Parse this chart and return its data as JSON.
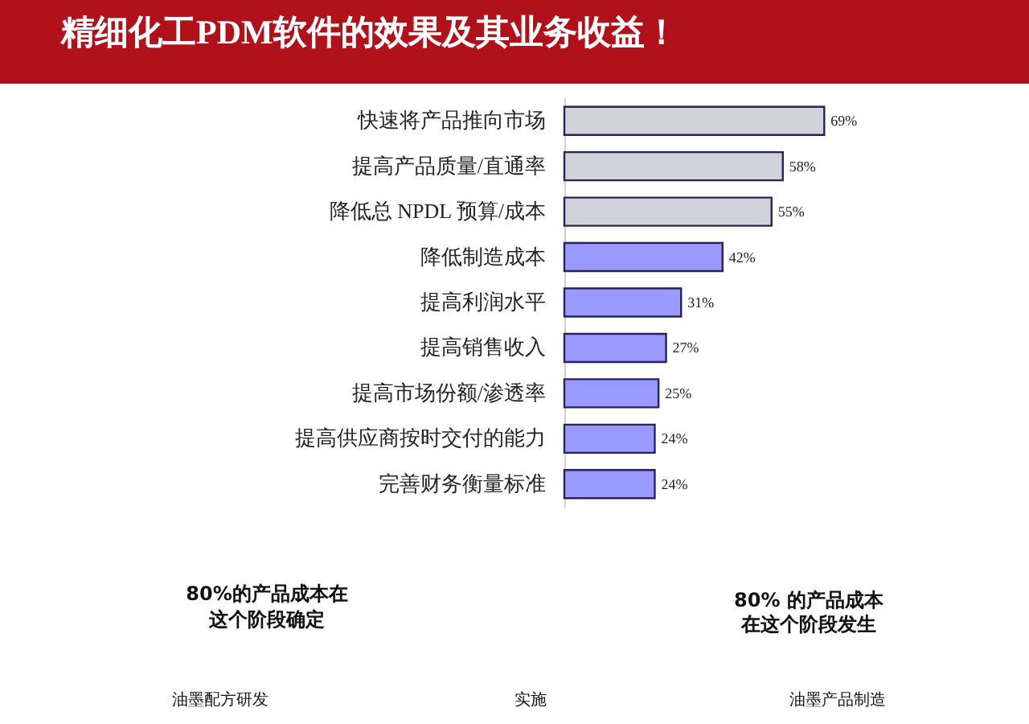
{
  "chart_data": {
    "type": "bar",
    "orientation": "horizontal",
    "title": "精细化工PDM软件的效果及其业务收益！",
    "categories": [
      "快速将产品推向市场",
      "提高产品质量/直通率",
      "降低总 NPDL 预算/成本",
      "降低制造成本",
      "提高利润水平",
      "提高销售收入",
      "提高市场份额/渗透率",
      "提高供应商按时交付的能力",
      "完善财务衡量标准"
    ],
    "values": [
      69,
      58,
      55,
      42,
      31,
      27,
      25,
      24,
      24
    ],
    "colors": [
      "#d2d2da",
      "#d2d2da",
      "#d2d2da",
      "#9999ff",
      "#9999ff",
      "#9999ff",
      "#9999ff",
      "#9999ff",
      "#9999ff"
    ],
    "value_labels": [
      "69%",
      "58%",
      "55%",
      "42%",
      "31%",
      "27%",
      "25%",
      "24%",
      "24%"
    ],
    "annotations": [
      "80%的产品成本在",
      "这个阶段确定",
      "80% 的产品成本",
      "在这个阶段发生",
      "油墨配方研发",
      "实施",
      "油墨产品制造"
    ]
  }
}
